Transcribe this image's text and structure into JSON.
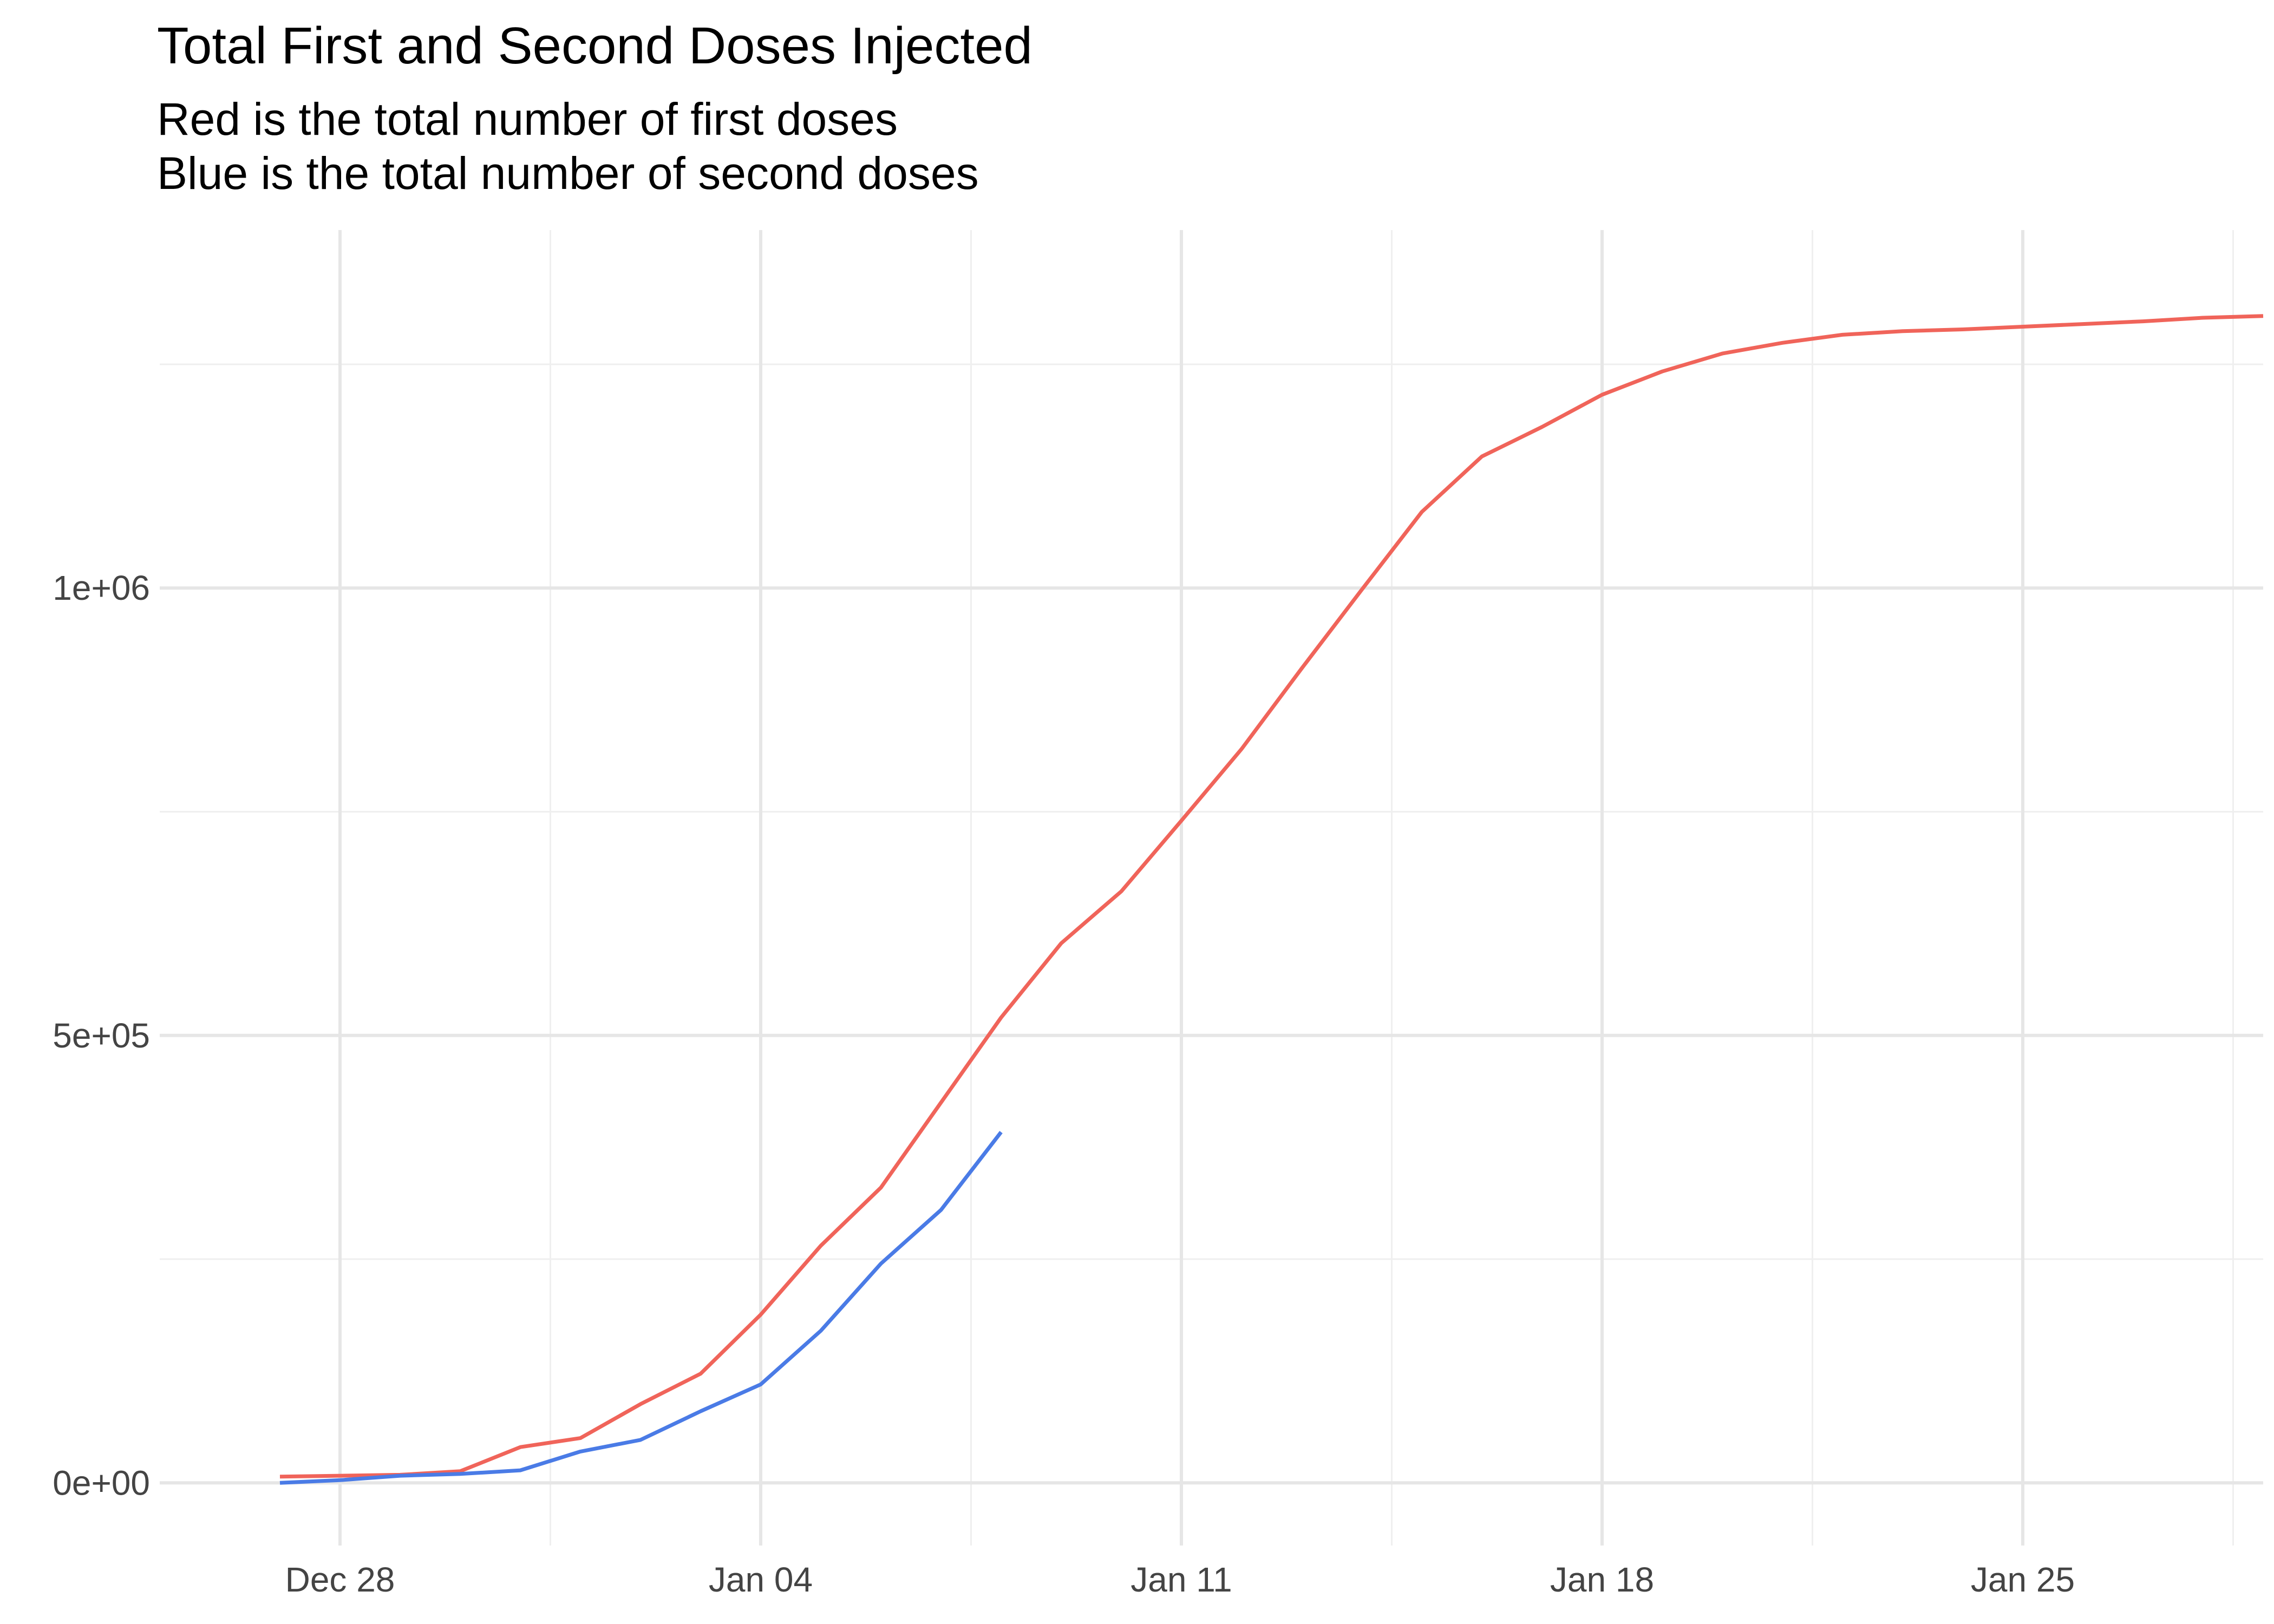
{
  "chart_data": {
    "type": "line",
    "title": "Total First and Second Doses Injected",
    "subtitle_lines": [
      "Red is the total number of first doses",
      "Blue is the total number of second doses"
    ],
    "xlabel": "",
    "ylabel": "",
    "x_ticks": [
      {
        "date": "2020-12-28",
        "label": "Dec 28"
      },
      {
        "date": "2021-01-04",
        "label": "Jan 04"
      },
      {
        "date": "2021-01-11",
        "label": "Jan 11"
      },
      {
        "date": "2021-01-18",
        "label": "Jan 18"
      },
      {
        "date": "2021-01-25",
        "label": "Jan 25"
      }
    ],
    "y_ticks": [
      {
        "value": 0,
        "label": "0e+00"
      },
      {
        "value": 500000,
        "label": "5e+05"
      },
      {
        "value": 1000000,
        "label": "1e+06"
      }
    ],
    "xlim": [
      "2020-12-25",
      "2021-01-29"
    ],
    "ylim": [
      -70000,
      1400000
    ],
    "grid": true,
    "legend": "none",
    "series": [
      {
        "color": "#f0645a",
        "points": [
          [
            "2020-12-27",
            7000
          ],
          [
            "2020-12-28",
            8000
          ],
          [
            "2020-12-29",
            9000
          ],
          [
            "2020-12-30",
            13000
          ],
          [
            "2020-12-31",
            40000
          ],
          [
            "2021-01-01",
            50000
          ],
          [
            "2021-01-02",
            88000
          ],
          [
            "2021-01-03",
            122000
          ],
          [
            "2021-01-04",
            188000
          ],
          [
            "2021-01-05",
            265000
          ],
          [
            "2021-01-06",
            330000
          ],
          [
            "2021-01-07",
            425000
          ],
          [
            "2021-01-08",
            520000
          ],
          [
            "2021-01-09",
            603000
          ],
          [
            "2021-01-10",
            661000
          ],
          [
            "2021-01-11",
            740000
          ],
          [
            "2021-01-12",
            820000
          ],
          [
            "2021-01-13",
            910000
          ],
          [
            "2021-01-14",
            998000
          ],
          [
            "2021-01-15",
            1085000
          ],
          [
            "2021-01-16",
            1147000
          ],
          [
            "2021-01-17",
            1180000
          ],
          [
            "2021-01-18",
            1216000
          ],
          [
            "2021-01-19",
            1242000
          ],
          [
            "2021-01-20",
            1262000
          ],
          [
            "2021-01-21",
            1274000
          ],
          [
            "2021-01-22",
            1283000
          ],
          [
            "2021-01-23",
            1287000
          ],
          [
            "2021-01-24",
            1289000
          ],
          [
            "2021-01-25",
            1292000
          ],
          [
            "2021-01-26",
            1295000
          ],
          [
            "2021-01-27",
            1298000
          ],
          [
            "2021-01-28",
            1302000
          ],
          [
            "2021-01-29",
            1304000
          ]
        ]
      },
      {
        "color": "#4a7be6",
        "points": [
          [
            "2020-12-27",
            0
          ],
          [
            "2020-12-28",
            3000
          ],
          [
            "2020-12-29",
            8000
          ],
          [
            "2020-12-30",
            10000
          ],
          [
            "2020-12-31",
            14000
          ],
          [
            "2021-01-01",
            35000
          ],
          [
            "2021-01-02",
            48000
          ],
          [
            "2021-01-03",
            80000
          ],
          [
            "2021-01-04",
            110000
          ],
          [
            "2021-01-05",
            170000
          ],
          [
            "2021-01-06",
            245000
          ],
          [
            "2021-01-07",
            305000
          ],
          [
            "2021-01-08",
            392000
          ]
        ]
      }
    ]
  }
}
